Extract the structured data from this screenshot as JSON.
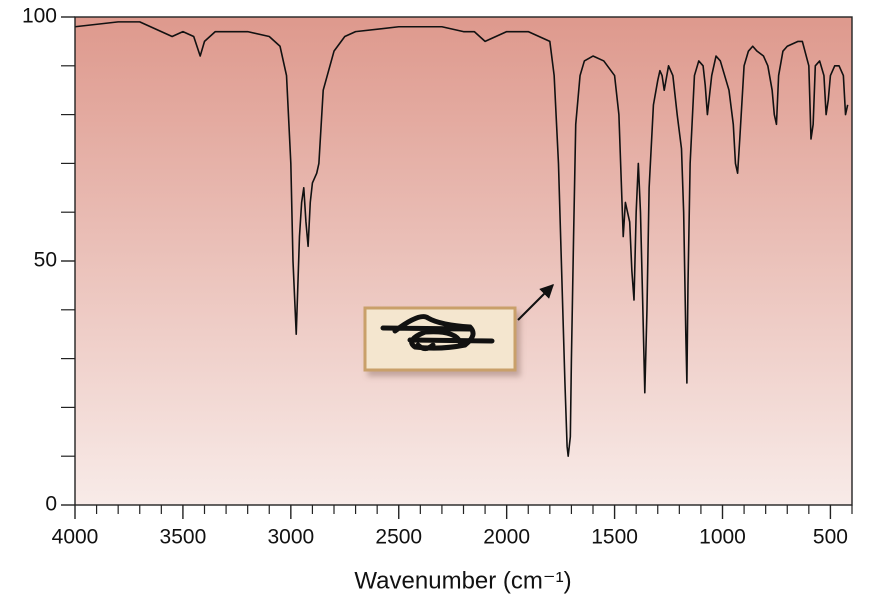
{
  "chart_data": {
    "type": "line",
    "x_label": "Wavenumber (cm⁻¹)",
    "color": "#111111",
    "background": [
      "#de998d",
      "#f8ebe8"
    ],
    "xlim": [
      4000,
      400
    ],
    "ylim": [
      0,
      100
    ],
    "xticks": [
      4000,
      3500,
      3000,
      2500,
      2000,
      1500,
      1000,
      500
    ],
    "xminorticks": [
      3900,
      3800,
      3700,
      3600,
      3400,
      3300,
      3200,
      3100,
      2900,
      2800,
      2700,
      2600,
      2400,
      2300,
      2200,
      2100,
      1900,
      1800,
      1700,
      1600,
      1400,
      1300,
      1200,
      1100,
      900,
      800,
      700,
      600,
      400
    ],
    "yticks": [
      0,
      50,
      100
    ],
    "yminorticks": [
      10,
      20,
      30,
      40,
      60,
      70,
      80,
      90
    ],
    "x": [
      4000,
      3800,
      3700,
      3600,
      3550,
      3500,
      3450,
      3420,
      3400,
      3350,
      3200,
      3100,
      3050,
      3020,
      3000,
      2990,
      2975,
      2960,
      2950,
      2940,
      2930,
      2920,
      2910,
      2900,
      2880,
      2870,
      2850,
      2800,
      2750,
      2700,
      2500,
      2300,
      2200,
      2150,
      2100,
      2050,
      2000,
      1900,
      1850,
      1800,
      1780,
      1760,
      1740,
      1730,
      1720,
      1715,
      1705,
      1700,
      1690,
      1680,
      1660,
      1640,
      1600,
      1550,
      1500,
      1480,
      1460,
      1450,
      1440,
      1430,
      1420,
      1410,
      1400,
      1390,
      1380,
      1370,
      1360,
      1350,
      1340,
      1320,
      1300,
      1290,
      1280,
      1270,
      1250,
      1230,
      1210,
      1190,
      1180,
      1170,
      1165,
      1160,
      1150,
      1130,
      1110,
      1090,
      1080,
      1070,
      1050,
      1030,
      1010,
      990,
      970,
      950,
      940,
      930,
      920,
      900,
      880,
      860,
      840,
      810,
      790,
      770,
      760,
      750,
      740,
      720,
      700,
      650,
      630,
      600,
      590,
      580,
      570,
      550,
      530,
      520,
      510,
      500,
      480,
      460,
      440,
      430,
      420
    ],
    "values": [
      98,
      99,
      99,
      97,
      96,
      97,
      96,
      92,
      95,
      97,
      97,
      96,
      94,
      88,
      70,
      50,
      35,
      55,
      62,
      65,
      58,
      53,
      62,
      66,
      68,
      70,
      85,
      93,
      96,
      97,
      98,
      98,
      97,
      97,
      95,
      96,
      97,
      97,
      96,
      95,
      88,
      70,
      40,
      25,
      12,
      10,
      14,
      30,
      55,
      78,
      88,
      91,
      92,
      91,
      88,
      80,
      55,
      62,
      60,
      58,
      48,
      42,
      60,
      70,
      60,
      42,
      23,
      40,
      65,
      82,
      87,
      89,
      88,
      85,
      90,
      88,
      80,
      73,
      60,
      35,
      25,
      45,
      70,
      88,
      91,
      90,
      86,
      80,
      88,
      92,
      91,
      88,
      85,
      78,
      70,
      68,
      75,
      90,
      93,
      94,
      93,
      92,
      90,
      85,
      80,
      78,
      88,
      93,
      94,
      95,
      95,
      90,
      75,
      78,
      90,
      91,
      88,
      80,
      83,
      88,
      90,
      90,
      88,
      80,
      82
    ]
  }
}
